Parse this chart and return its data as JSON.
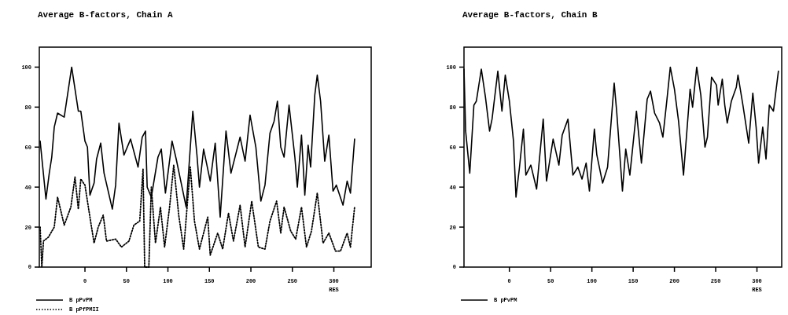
{
  "chart_data": [
    {
      "type": "line",
      "title": "Average B-factors, Chain A",
      "xlabel": "RES",
      "xlim": [
        -55,
        345
      ],
      "xticks": [
        0,
        50,
        100,
        150,
        200,
        250,
        300
      ],
      "ylim": [
        0,
        110
      ],
      "yticks": [
        0,
        20,
        40,
        60,
        80,
        100
      ],
      "legend": "bottom left",
      "grid": false,
      "series": [
        {
          "name": "B pPvPM",
          "color": "#000000",
          "line_style": "solid",
          "x": [
            -54,
            -47,
            -43,
            -40,
            -37,
            -33,
            -25,
            -16,
            -8,
            -5,
            0,
            3,
            6,
            11,
            14,
            19,
            23,
            33,
            37,
            41,
            47,
            55,
            64,
            69,
            73,
            75,
            80,
            88,
            92,
            97,
            105,
            110,
            116,
            122,
            130,
            135,
            138,
            143,
            151,
            157,
            163,
            170,
            176,
            187,
            193,
            199,
            206,
            212,
            217,
            223,
            228,
            232,
            236,
            240,
            246,
            253,
            256,
            261,
            265,
            269,
            272,
            277,
            280,
            284,
            289,
            294,
            299,
            303,
            311,
            316,
            320,
            325
          ],
          "values": [
            63,
            34,
            47,
            55,
            70,
            77,
            75,
            100,
            78,
            78,
            63,
            60,
            36,
            42,
            54,
            62,
            47,
            29,
            41,
            72,
            56,
            64,
            50,
            65,
            68,
            40,
            35,
            55,
            59,
            37,
            63,
            54,
            42,
            30,
            78,
            56,
            40,
            59,
            43,
            62,
            25,
            68,
            47,
            65,
            53,
            76,
            60,
            33,
            41,
            67,
            73,
            83,
            60,
            55,
            81,
            55,
            40,
            66,
            36,
            61,
            50,
            86,
            96,
            83,
            53,
            66,
            38,
            41,
            31,
            43,
            37,
            64
          ]
        },
        {
          "name": "B pPfPMII",
          "color": "#000000",
          "line_style": "dotted",
          "x": [
            -54,
            -52,
            -50,
            -44,
            -37,
            -33,
            -25,
            -17,
            -12,
            -8,
            -5,
            0,
            6,
            11,
            16,
            22,
            26,
            37,
            44,
            53,
            59,
            66,
            70,
            72,
            77,
            80,
            85,
            91,
            96,
            102,
            107,
            113,
            119,
            127,
            132,
            138,
            148,
            151,
            160,
            166,
            173,
            179,
            187,
            193,
            201,
            209,
            217,
            223,
            231,
            236,
            240,
            248,
            254,
            261,
            267,
            273,
            280,
            287,
            294,
            302,
            308,
            316,
            320,
            325
          ],
          "values": [
            20,
            0,
            13,
            15,
            20,
            35,
            21,
            30,
            45,
            29,
            44,
            41,
            25,
            12,
            20,
            26,
            13,
            14,
            10,
            13,
            21,
            23,
            49,
            0,
            0,
            40,
            12,
            30,
            10,
            30,
            51,
            26,
            9,
            50,
            23,
            9,
            25,
            6,
            17,
            9,
            27,
            13,
            31,
            10,
            33,
            10,
            9,
            23,
            33,
            17,
            30,
            18,
            14,
            30,
            10,
            18,
            37,
            12,
            17,
            8,
            8,
            17,
            10,
            30
          ]
        }
      ]
    },
    {
      "type": "line",
      "title": "Average B-factors, Chain B",
      "xlabel": "RES",
      "xlim": [
        -55,
        330
      ],
      "xticks": [
        0,
        50,
        100,
        150,
        200,
        250,
        300
      ],
      "ylim": [
        0,
        110
      ],
      "yticks": [
        0,
        20,
        40,
        60,
        80,
        100
      ],
      "legend": "bottom left",
      "grid": false,
      "series": [
        {
          "name": "B pPvPM",
          "color": "#000000",
          "line_style": "solid",
          "x": [
            -55,
            -53,
            -48,
            -43,
            -40,
            -34,
            -29,
            -24,
            -21,
            -14,
            -9,
            -5,
            0,
            5,
            8,
            12,
            17,
            20,
            26,
            33,
            41,
            45,
            53,
            60,
            64,
            71,
            77,
            83,
            88,
            93,
            97,
            103,
            106,
            113,
            119,
            127,
            130,
            137,
            141,
            146,
            154,
            160,
            167,
            171,
            176,
            182,
            186,
            191,
            195,
            200,
            205,
            211,
            219,
            222,
            227,
            232,
            237,
            240,
            245,
            251,
            253,
            258,
            261,
            264,
            269,
            275,
            277,
            283,
            290,
            295,
            299,
            302,
            307,
            311,
            315,
            320,
            326
          ],
          "values": [
            99,
            68,
            47,
            81,
            83,
            99,
            85,
            68,
            74,
            98,
            78,
            96,
            83,
            63,
            35,
            49,
            69,
            46,
            51,
            39,
            74,
            43,
            64,
            51,
            66,
            74,
            46,
            50,
            44,
            52,
            38,
            69,
            56,
            42,
            50,
            92,
            78,
            38,
            59,
            46,
            78,
            52,
            84,
            88,
            77,
            72,
            65,
            84,
            100,
            89,
            73,
            46,
            89,
            80,
            100,
            86,
            60,
            65,
            95,
            91,
            81,
            94,
            81,
            72,
            83,
            90,
            96,
            81,
            62,
            87,
            70,
            52,
            70,
            54,
            81,
            78,
            98
          ]
        }
      ]
    }
  ]
}
